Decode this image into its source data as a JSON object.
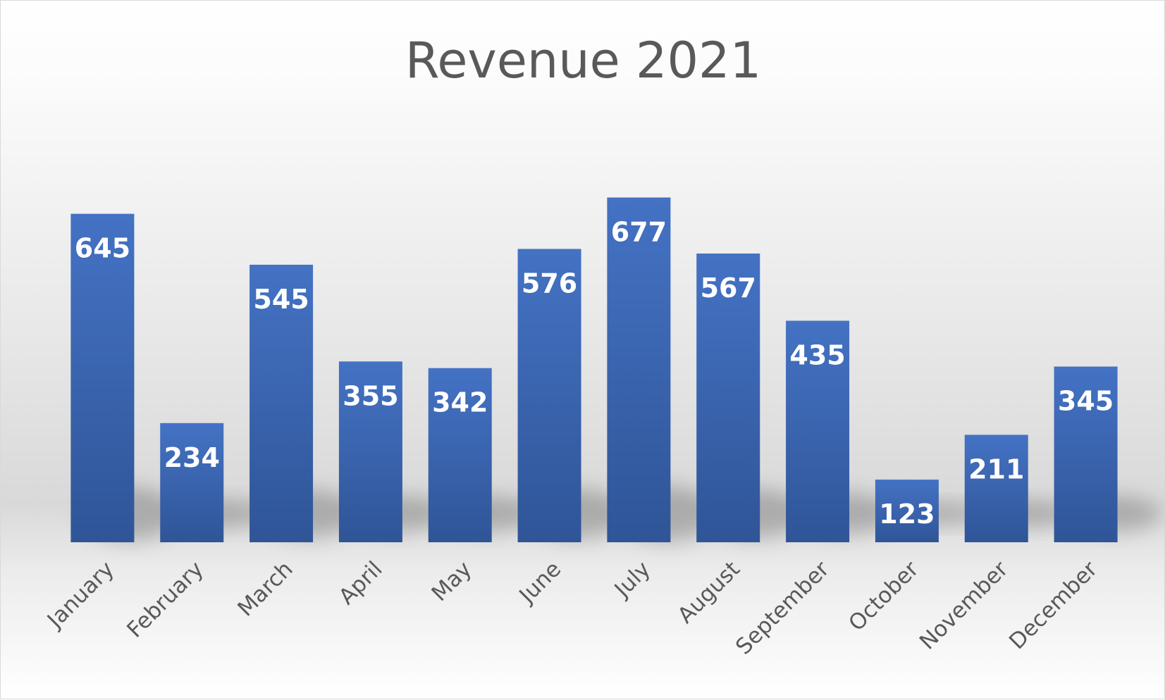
{
  "chart_data": {
    "type": "bar",
    "title": "Revenue 2021",
    "categories": [
      "January",
      "February",
      "March",
      "April",
      "May",
      "June",
      "July",
      "August",
      "September",
      "October",
      "November",
      "December"
    ],
    "values": [
      645,
      234,
      545,
      355,
      342,
      576,
      677,
      567,
      435,
      123,
      211,
      345
    ],
    "data_labels": "inside-end",
    "grid": false,
    "legend": "none",
    "xlabel": "",
    "ylabel": "",
    "bar_color": "#4472c4",
    "bar_color_dark": "#2f5597",
    "label_color": "#ffffff",
    "tick_color": "#595959"
  }
}
